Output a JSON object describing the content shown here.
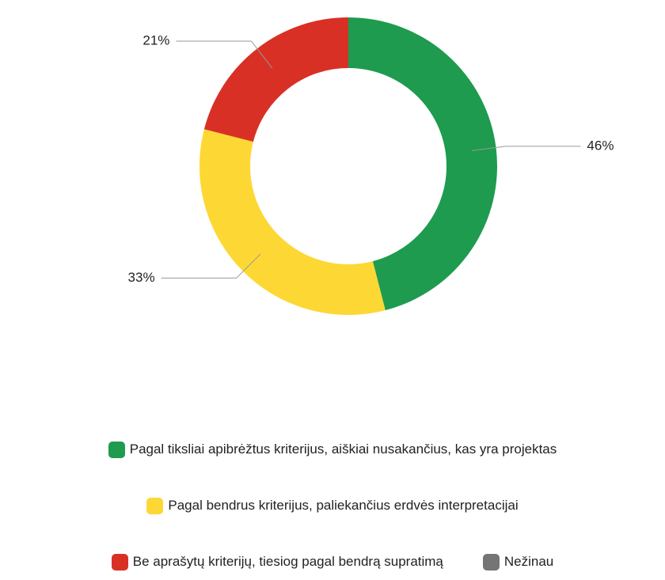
{
  "chart_data": {
    "type": "donut",
    "categories": [
      "Pagal tiksliai apibrėžtus kriterijus, aiškiai nusakančius, kas yra projektas",
      "Pagal bendrus kriterijus, paliekančius erdvės interpretacijai",
      "Be aprašytų kriterijų, tiesiog pagal bendrą supratimą",
      "Nežinau"
    ],
    "values": [
      46,
      33,
      21,
      0
    ],
    "value_labels": [
      "46%",
      "33%",
      "21%",
      null
    ],
    "colors": [
      "#1e9b4f",
      "#fdd835",
      "#d93025",
      "#757575"
    ],
    "legend": "bottom"
  }
}
